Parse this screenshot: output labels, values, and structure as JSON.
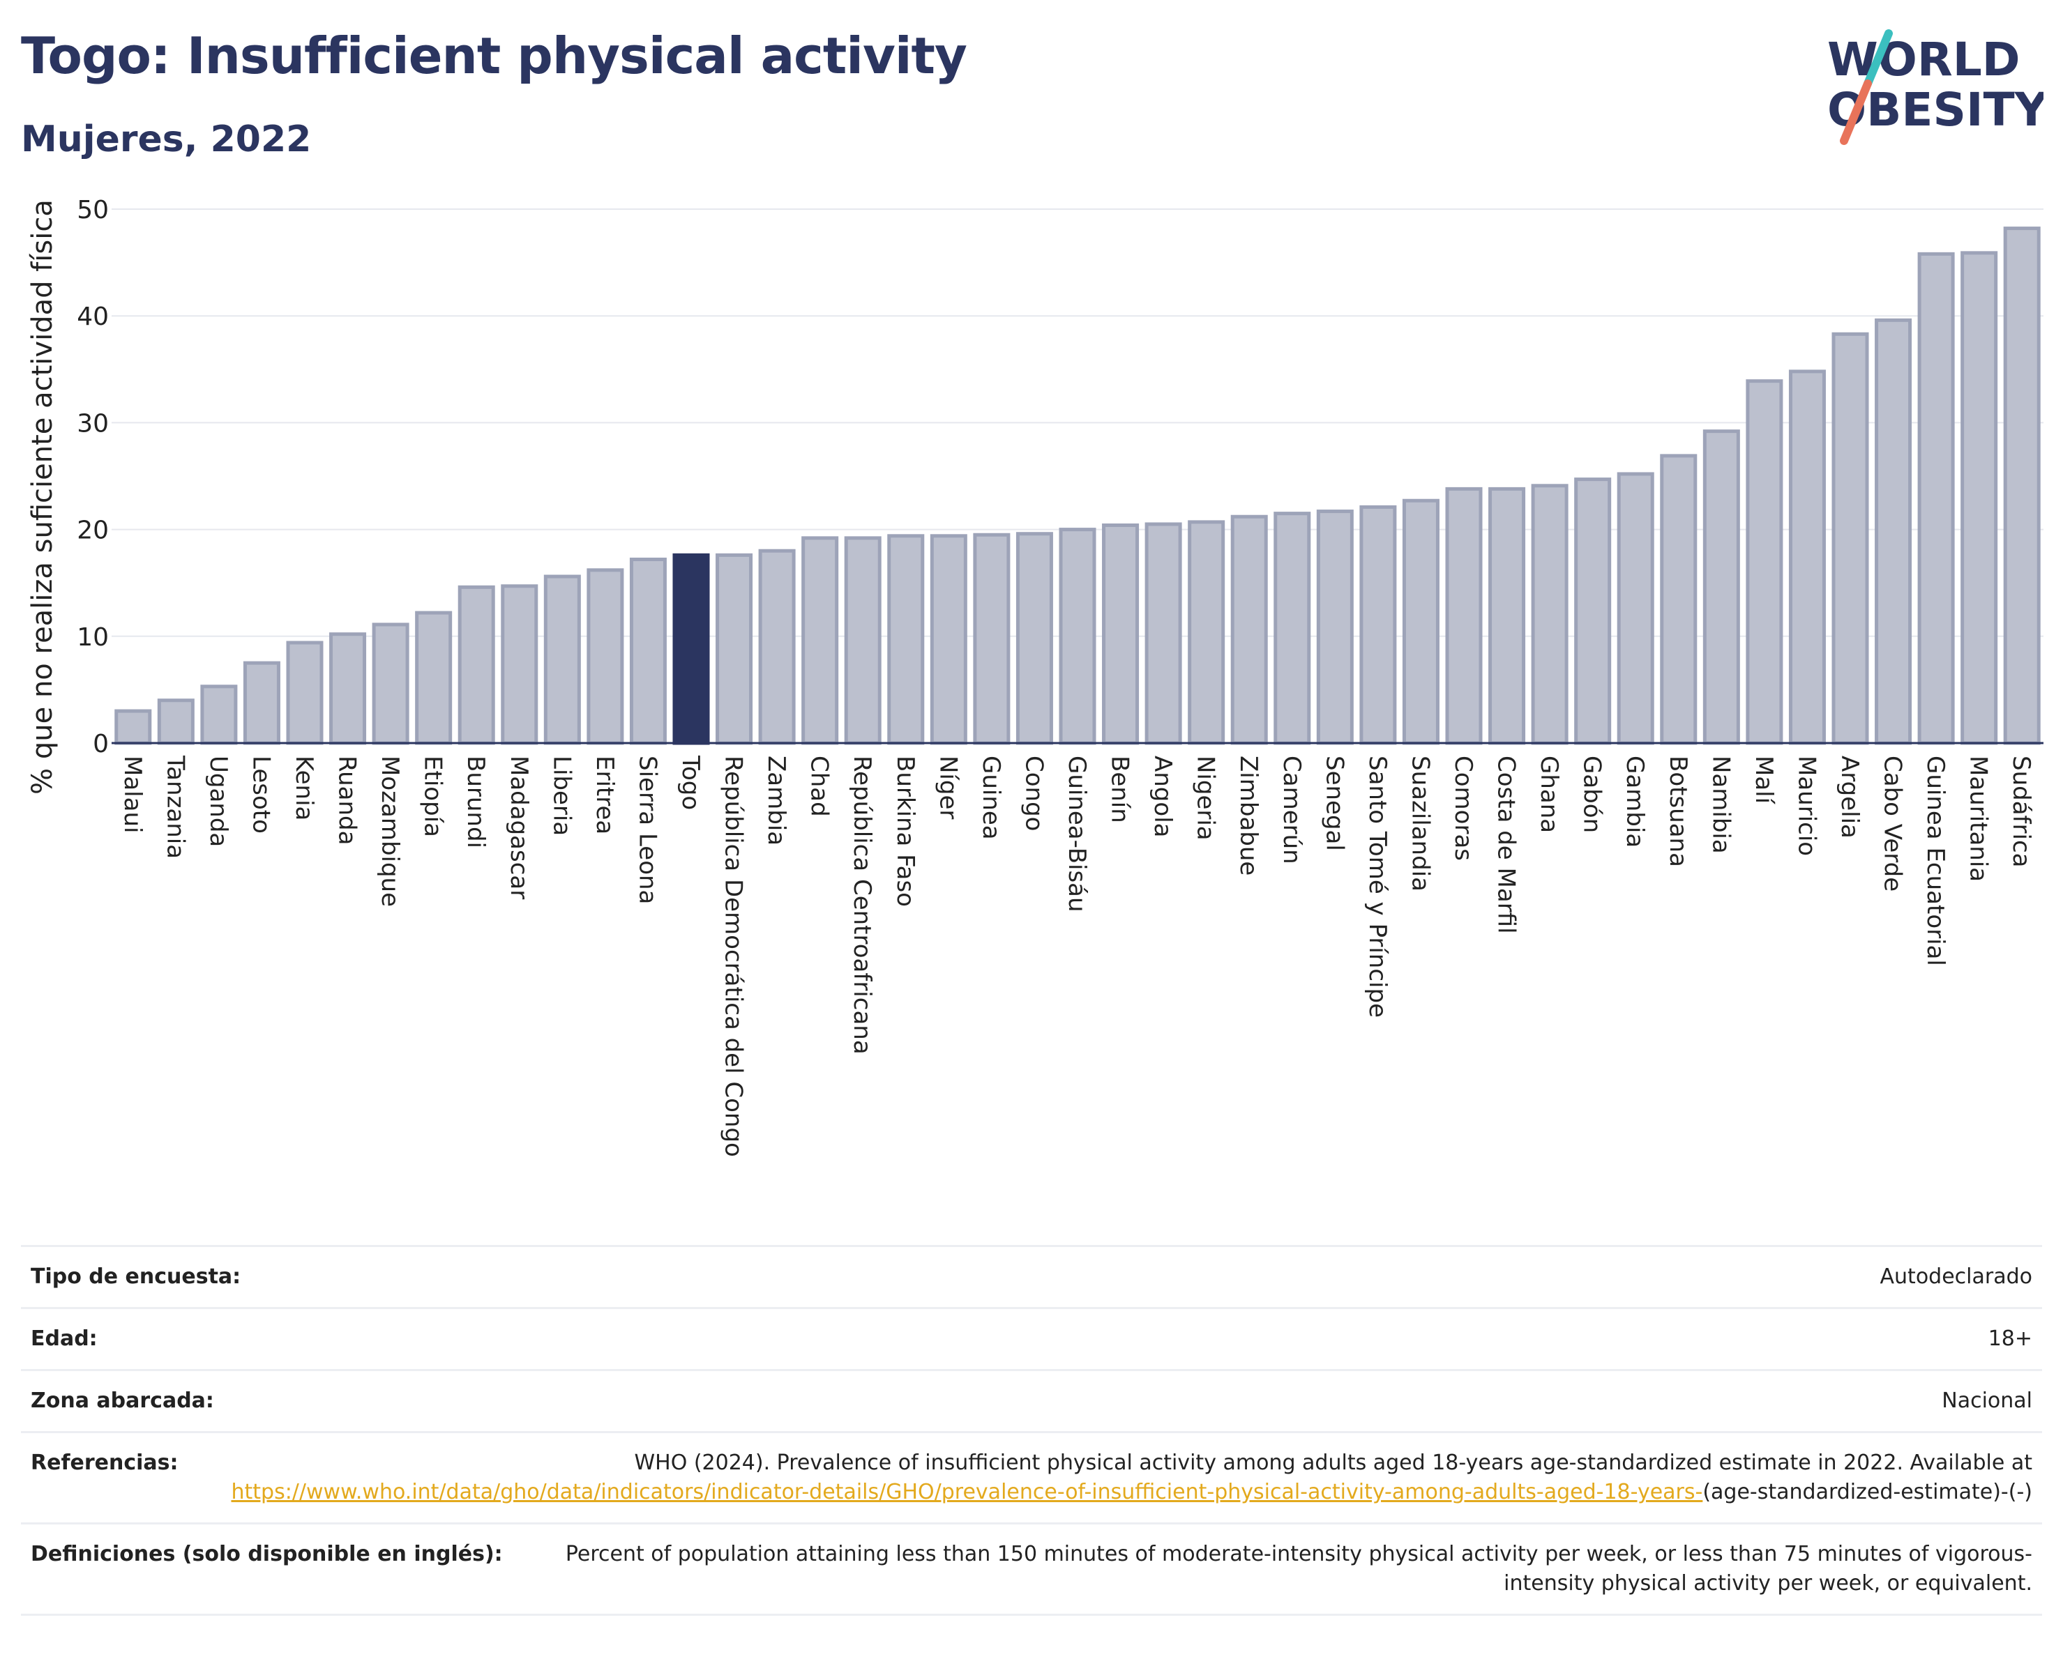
{
  "header": {
    "title": "Togo: Insufficient physical activity",
    "subtitle": "Mujeres, 2022"
  },
  "logo": {
    "line1": "WORLD",
    "line2": "OBESITY",
    "colors": {
      "text": "#2b3560",
      "slash_top": "#3bbfbf",
      "slash_bottom": "#e8735a"
    }
  },
  "chart_data": {
    "type": "bar",
    "ylabel": "% que no realiza suficiente actividad física",
    "xlabel": "",
    "ylim": [
      0,
      50
    ],
    "yticks": [
      0,
      10,
      20,
      30,
      40,
      50
    ],
    "grid": true,
    "highlight": "Togo",
    "colors": {
      "bar": "#bcc0ce",
      "bar_border": "#9da3b8",
      "highlight": "#2b3560",
      "grid": "#e6e8ee"
    },
    "categories": [
      "Malaui",
      "Tanzania",
      "Uganda",
      "Lesoto",
      "Kenia",
      "Ruanda",
      "Mozambique",
      "Etiopía",
      "Burundi",
      "Madagascar",
      "Liberia",
      "Eritrea",
      "Sierra Leona",
      "Togo",
      "República Democrática del Congo",
      "Zambia",
      "Chad",
      "República Centroafricana",
      "Burkina Faso",
      "Níger",
      "Guinea",
      "Congo",
      "Guinea-Bisáu",
      "Benín",
      "Angola",
      "Nigeria",
      "Zimbabue",
      "Camerún",
      "Senegal",
      "Santo Tomé y Príncipe",
      "Suazilandia",
      "Comoras",
      "Costa de Marfil",
      "Ghana",
      "Gabón",
      "Gambia",
      "Botsuana",
      "Namibia",
      "Malí",
      "Mauricio",
      "Argelia",
      "Cabo Verde",
      "Guinea Ecuatorial",
      "Mauritania",
      "Sudáfrica"
    ],
    "values": [
      3.0,
      4.0,
      5.3,
      7.5,
      9.4,
      10.2,
      11.1,
      12.2,
      14.6,
      14.7,
      15.6,
      16.2,
      17.2,
      17.6,
      17.6,
      18.0,
      19.2,
      19.2,
      19.4,
      19.4,
      19.5,
      19.6,
      20.0,
      20.4,
      20.5,
      20.7,
      21.2,
      21.5,
      21.7,
      22.1,
      22.7,
      23.8,
      23.8,
      24.1,
      24.7,
      25.2,
      26.9,
      29.2,
      33.9,
      34.8,
      38.3,
      39.6,
      45.8,
      45.9,
      48.2
    ]
  },
  "info_table": {
    "survey_label": "Tipo de encuesta:",
    "survey_value": "Autodeclarado",
    "age_label": "Edad:",
    "age_value": "18+",
    "area_label": "Zona abarcada:",
    "area_value": "Nacional",
    "refs_label": "Referencias:",
    "refs_text": "WHO (2024). Prevalence of insufficient physical activity among adults aged 18-years age-standardized estimate in 2022. Available at",
    "refs_link": "https://www.who.int/data/gho/data/indicators/indicator-details/GHO/prevalence-of-insufficient-physical-activity-among-adults-aged-18-years-",
    "refs_suffix": "(age-standardized-estimate)-(-)",
    "defs_label": "Definiciones (solo disponible en inglés):",
    "defs_text": "Percent of population attaining less than 150 minutes of moderate-intensity physical activity per week, or less than 75 minutes of vigorous-intensity physical activity per week, or equivalent."
  }
}
